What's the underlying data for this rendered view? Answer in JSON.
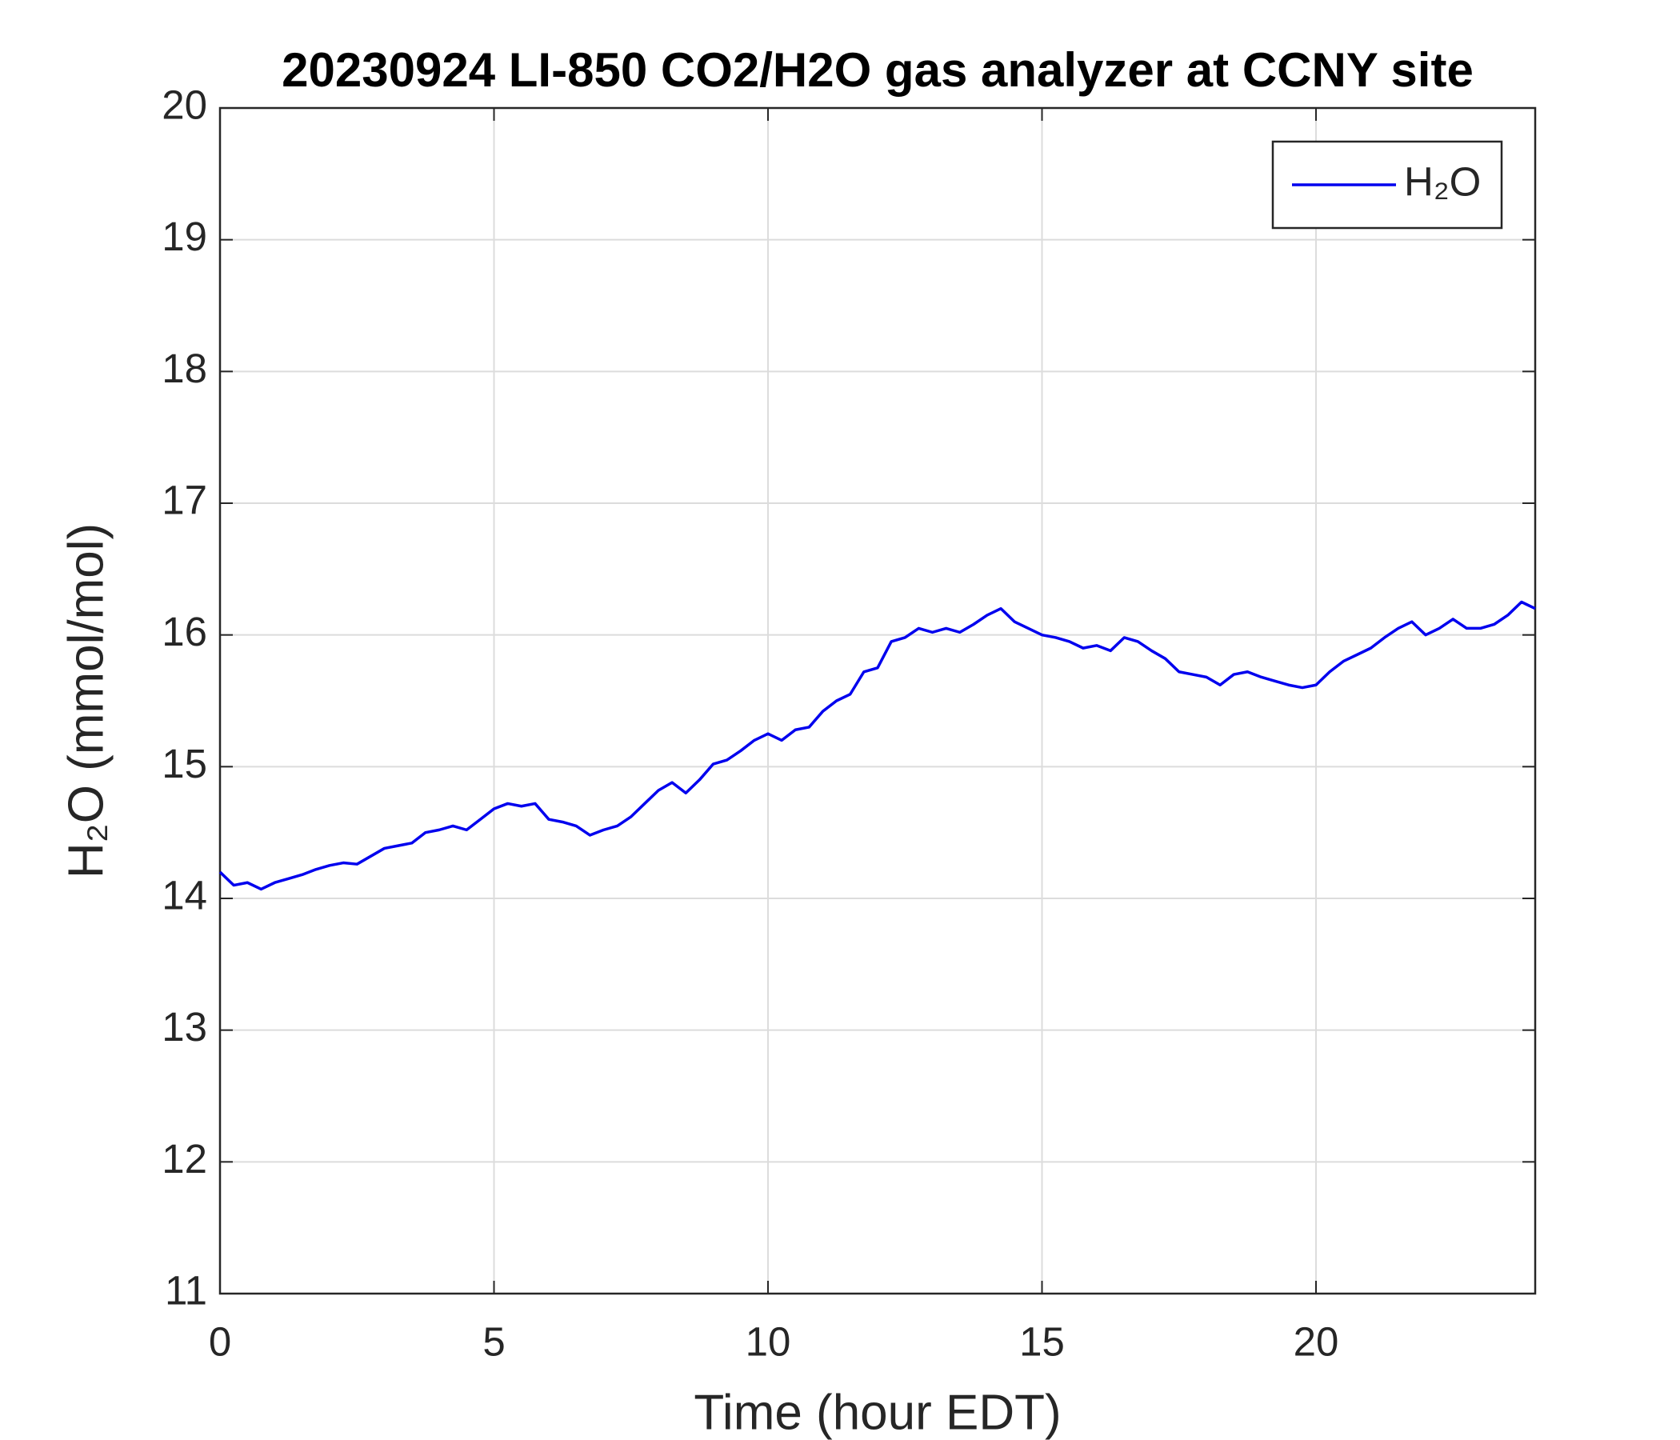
{
  "chart_data": {
    "type": "line",
    "title": "20230924 LI-850 CO2/H2O gas analyzer at CCNY site",
    "xlabel": "Time (hour EDT)",
    "ylabel": "H₂O (mmol/mol)",
    "x": [
      0,
      0.25,
      0.5,
      0.75,
      1,
      1.25,
      1.5,
      1.75,
      2,
      2.25,
      2.5,
      2.75,
      3,
      3.25,
      3.5,
      3.75,
      4,
      4.25,
      4.5,
      4.75,
      5,
      5.25,
      5.5,
      5.75,
      6,
      6.25,
      6.5,
      6.75,
      7,
      7.25,
      7.5,
      7.75,
      8,
      8.25,
      8.5,
      8.75,
      9,
      9.25,
      9.5,
      9.75,
      10,
      10.25,
      10.5,
      10.75,
      11,
      11.25,
      11.5,
      11.75,
      12,
      12.25,
      12.5,
      12.75,
      13,
      13.25,
      13.5,
      13.75,
      14,
      14.25,
      14.5,
      14.75,
      15,
      15.25,
      15.5,
      15.75,
      16,
      16.25,
      16.5,
      16.75,
      17,
      17.25,
      17.5,
      17.75,
      18,
      18.25,
      18.5,
      18.75,
      19,
      19.25,
      19.5,
      19.75,
      20,
      20.25,
      20.5,
      20.75,
      21,
      21.25,
      21.5,
      21.75,
      22,
      22.25,
      22.5,
      22.75,
      23,
      23.25,
      23.5,
      23.75,
      24
    ],
    "series": [
      {
        "name": "H₂O",
        "color": "#0000ee",
        "values": [
          14.2,
          14.1,
          14.12,
          14.07,
          14.12,
          14.15,
          14.18,
          14.22,
          14.25,
          14.27,
          14.26,
          14.32,
          14.38,
          14.4,
          14.42,
          14.5,
          14.52,
          14.55,
          14.52,
          14.6,
          14.68,
          14.72,
          14.7,
          14.72,
          14.6,
          14.58,
          14.55,
          14.48,
          14.52,
          14.55,
          14.62,
          14.72,
          14.82,
          14.88,
          14.8,
          14.9,
          15.02,
          15.05,
          15.12,
          15.2,
          15.25,
          15.2,
          15.28,
          15.3,
          15.42,
          15.5,
          15.55,
          15.72,
          15.75,
          15.95,
          15.98,
          16.05,
          16.02,
          16.05,
          16.02,
          16.08,
          16.15,
          16.2,
          16.1,
          16.05,
          16.0,
          15.98,
          15.95,
          15.9,
          15.92,
          15.88,
          15.98,
          15.95,
          15.88,
          15.82,
          15.72,
          15.7,
          15.68,
          15.62,
          15.7,
          15.72,
          15.68,
          15.65,
          15.62,
          15.6,
          15.62,
          15.72,
          15.8,
          15.85,
          15.9,
          15.98,
          16.05,
          16.1,
          16.0,
          16.05,
          16.12,
          16.05,
          16.05,
          16.08,
          16.15,
          16.25,
          16.2
        ]
      }
    ],
    "xlim": [
      0,
      24
    ],
    "xticks": [
      0,
      5,
      10,
      15,
      20
    ],
    "ylim": [
      11,
      20
    ],
    "yticks": [
      11,
      12,
      13,
      14,
      15,
      16,
      17,
      18,
      19,
      20
    ],
    "grid": true,
    "legend": "upper right"
  }
}
